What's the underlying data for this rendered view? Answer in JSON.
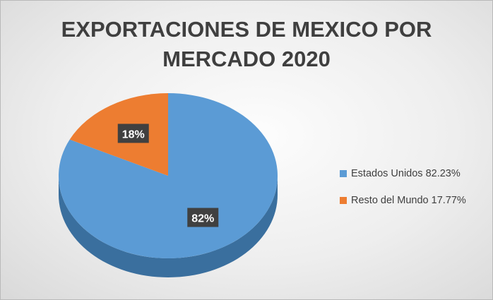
{
  "chart_data": {
    "type": "pie",
    "title_lines": [
      "EXPORTACIONES DE MEXICO POR",
      "MERCADO 2020"
    ],
    "slices": [
      {
        "label": "Estados Unidos",
        "value": 82.23,
        "legend": "Estados Unidos 82.23%",
        "data_label": "82%",
        "color": "#5b9bd5",
        "side_color": "#3a6f9e"
      },
      {
        "label": "Resto del Mundo",
        "value": 17.77,
        "legend": "Resto del Mundo 17.77%",
        "data_label": "18%",
        "color": "#ed7d31",
        "side_color": "#b35a1f"
      }
    ],
    "legend_position": "right",
    "three_d": true,
    "data_label_style": {
      "background": "#404040",
      "color": "#ffffff"
    }
  }
}
